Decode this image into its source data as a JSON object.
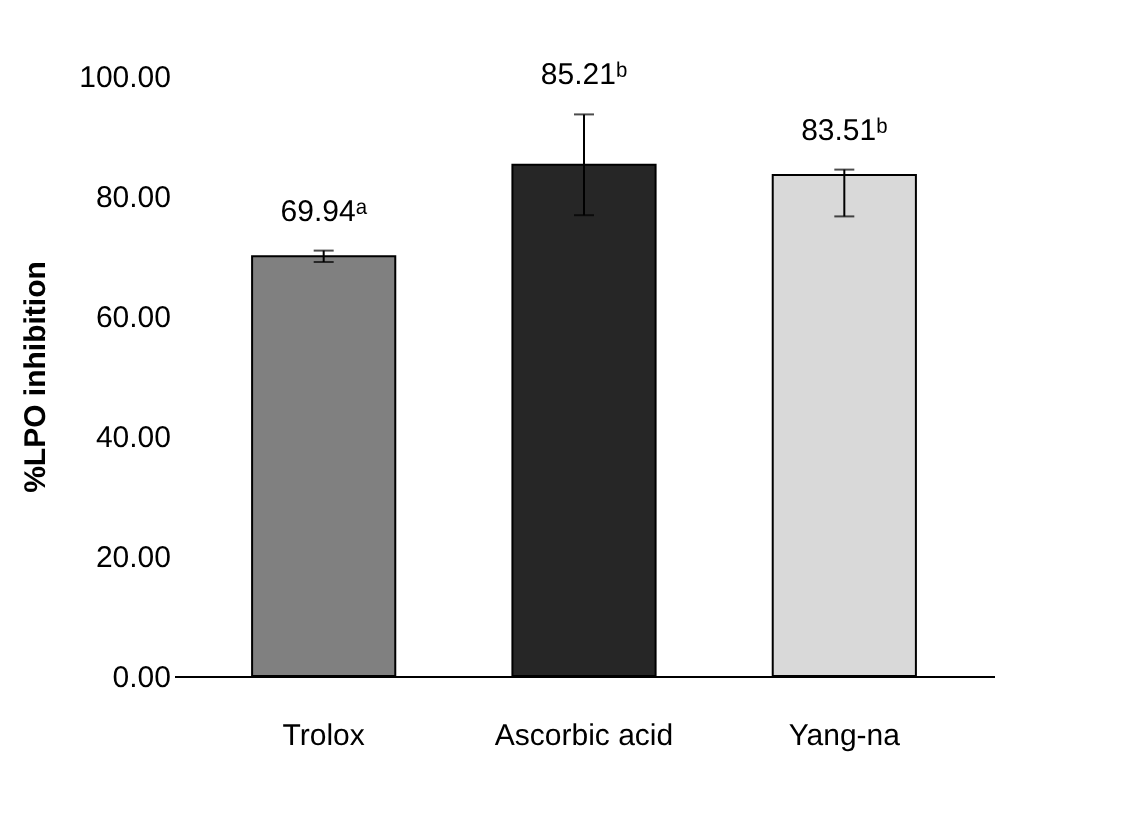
{
  "chart_data": {
    "type": "bar",
    "ylabel": "%LPO inhibition",
    "categories": [
      "Trolox",
      "Ascorbic acid",
      "Yang-na"
    ],
    "values": [
      69.94,
      85.21,
      83.51
    ],
    "colors": [
      "#808080",
      "#262626",
      "#d9d9d9"
    ],
    "errors": [
      [
        69.0,
        70.9
      ],
      [
        76.8,
        93.6
      ],
      [
        76.6,
        84.4
      ]
    ],
    "value_labels": [
      "69.94ᵃ",
      "85.21ᵇ",
      "83.51ᵇ"
    ],
    "ylim": [
      0,
      100
    ],
    "yticks": [
      {
        "value": 0,
        "label": "0.00"
      },
      {
        "value": 20,
        "label": "20.00"
      },
      {
        "value": 40,
        "label": "40.00"
      },
      {
        "value": 60,
        "label": "60.00"
      },
      {
        "value": 80,
        "label": "80.00"
      },
      {
        "value": 100,
        "label": "100.00"
      }
    ],
    "grid": false
  }
}
